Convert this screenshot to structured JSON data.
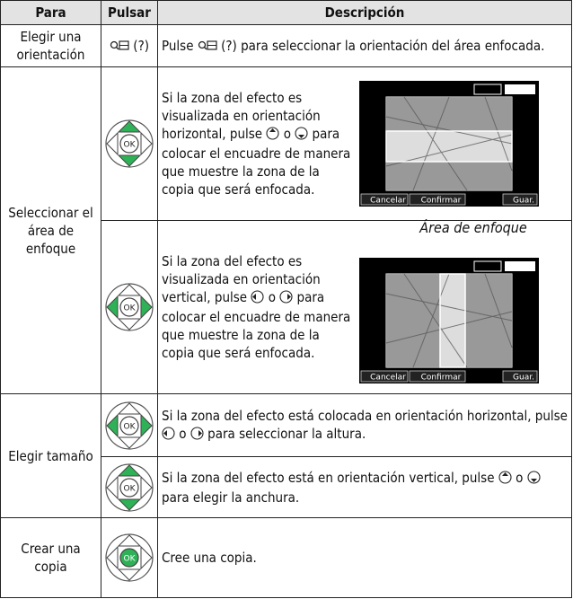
{
  "header": [
    "Para",
    "Pulsar",
    "Descripción"
  ],
  "icons": {
    "ok": "OK"
  },
  "rows": [
    {
      "para": "Elegir una orientación",
      "pulsar": "(?)",
      "descripcion": {
        "before": "Pulse",
        "after": "(?) para seleccionar la orientación del área enfocada."
      }
    },
    {
      "para": "Seleccionar el área de enfoque",
      "steps": [
        {
          "before": "Si la zona del efecto es visualizada en orientación horizontal, pulse",
          "or": "o",
          "after": "para colocar el encuadre de manera que muestre la zona de la copia que será enfocada."
        },
        {
          "before": "Si la zona del efecto es visualizada en orientación vertical, pulse",
          "or": "o",
          "after": "para colocar el encuadre de manera que muestre la zona de la copia que será enfocada."
        }
      ],
      "caption": "Área de enfoque",
      "screen": [
        "Cancelar",
        "Confirmar",
        "Guar."
      ]
    },
    {
      "para": "Elegir tamaño",
      "steps": [
        {
          "before": "Si la zona del efecto está colocada en orientación horizontal, pulse",
          "or": "o",
          "after": "para seleccionar la altura."
        },
        {
          "before": "Si la zona del efecto está en orientación vertical, pulse",
          "or": "o",
          "after": "para elegir la anchura."
        }
      ]
    },
    {
      "para": "Crear una copia",
      "descripcion": "Cree una copia."
    }
  ]
}
